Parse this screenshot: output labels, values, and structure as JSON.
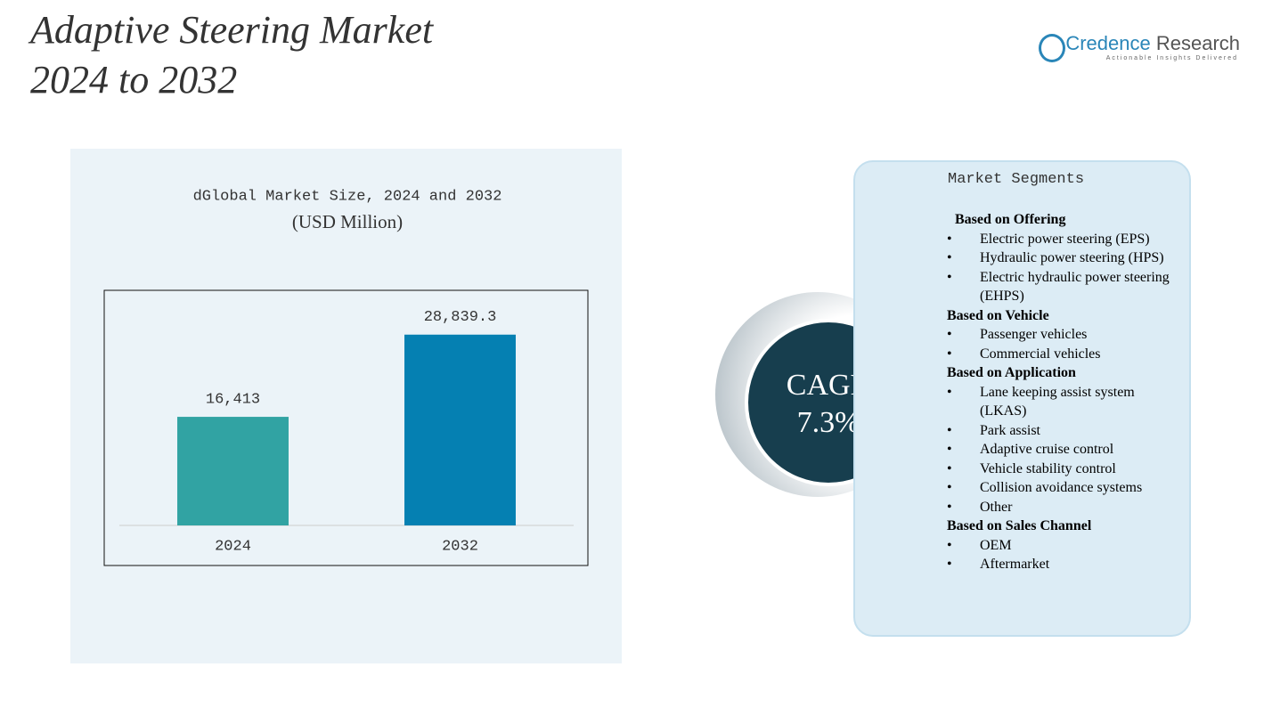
{
  "header": {
    "title_line1": "Adaptive Steering Market",
    "title_line2": "2024 to 2032",
    "brand_name_1": "Credence",
    "brand_name_2": "Research",
    "tagline": "Actionable Insights Delivered"
  },
  "chart_data": {
    "type": "bar",
    "title": "dGlobal Market Size, 2024 and 2032",
    "subtitle": "(USD Million)",
    "categories": [
      "2024",
      "2032"
    ],
    "values": [
      16413,
      28839.3
    ],
    "value_labels": [
      "16,413",
      "28,839.3"
    ],
    "colors": [
      "#31a3a3",
      "#0580b2"
    ],
    "ylim": [
      0,
      35000
    ]
  },
  "cagr": {
    "label": "CAGR",
    "value": "7.3%"
  },
  "segments": {
    "title": "Market Segments",
    "groups": [
      {
        "heading": "Based on Offering",
        "items": [
          "Electric power steering (EPS)",
          "Hydraulic power steering (HPS)",
          "Electric hydraulic power steering (EHPS)"
        ]
      },
      {
        "heading": "Based on Vehicle",
        "items": [
          "Passenger vehicles",
          "Commercial vehicles"
        ]
      },
      {
        "heading": "Based on Application",
        "items": [
          "Lane keeping assist system (LKAS)",
          "Park assist",
          "Adaptive cruise control",
          "Vehicle stability control",
          "Collision avoidance systems",
          "Other"
        ]
      },
      {
        "heading": "Based on Sales Channel",
        "items": [
          "OEM",
          "Aftermarket"
        ]
      }
    ]
  }
}
